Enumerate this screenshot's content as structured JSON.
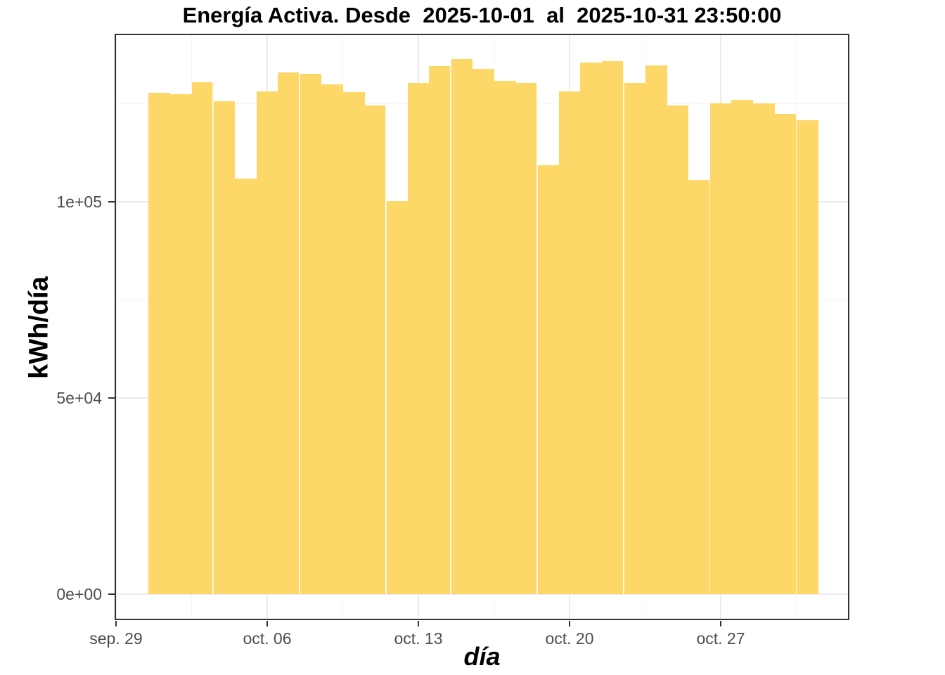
{
  "chart_data": {
    "type": "bar",
    "title": "Energía Activa. Desde  2025-10-01  al  2025-10-31 23:50:00",
    "xlabel": "día",
    "ylabel": "kWh/día",
    "x": [
      "2025-10-01",
      "2025-10-02",
      "2025-10-03",
      "2025-10-04",
      "2025-10-05",
      "2025-10-06",
      "2025-10-07",
      "2025-10-08",
      "2025-10-09",
      "2025-10-10",
      "2025-10-11",
      "2025-10-12",
      "2025-10-13",
      "2025-10-14",
      "2025-10-15",
      "2025-10-16",
      "2025-10-17",
      "2025-10-18",
      "2025-10-19",
      "2025-10-20",
      "2025-10-21",
      "2025-10-22",
      "2025-10-23",
      "2025-10-24",
      "2025-10-25",
      "2025-10-26",
      "2025-10-27",
      "2025-10-28",
      "2025-10-29",
      "2025-10-30",
      "2025-10-31"
    ],
    "values": [
      127800,
      127500,
      130500,
      125700,
      105900,
      128200,
      132900,
      132600,
      130000,
      127900,
      124600,
      100200,
      130300,
      134500,
      136300,
      133900,
      130800,
      130200,
      109300,
      128200,
      135400,
      135900,
      130300,
      134700,
      124500,
      105600,
      125100,
      125900,
      125100,
      122400,
      120700
    ],
    "x_tick_labels": [
      "sep. 29",
      "oct. 06",
      "oct. 13",
      "oct. 20",
      "oct. 27"
    ],
    "x_tick_day_offsets": [
      0,
      7,
      14,
      21,
      28
    ],
    "x_minor_day_offsets": [
      3.5,
      10.5,
      17.5,
      24.5,
      31.5
    ],
    "y_tick_labels": [
      "0e+00",
      "5e+04",
      "1e+05"
    ],
    "y_tick_values": [
      0,
      50000,
      100000
    ],
    "y_minor_values": [
      25000,
      75000,
      125000
    ],
    "ylim": [
      -6800,
      142900
    ],
    "grid": true,
    "legend_position": "none",
    "bar_color": "#FDD768",
    "seam_after_days": [
      3,
      7,
      11,
      14,
      18,
      22,
      26,
      30
    ],
    "colors": {
      "background": "#ffffff",
      "panel_border": "#333333",
      "grid_major": "#ebebeb",
      "grid_minor": "#f5f5f5",
      "tick_label": "#4d4d4d",
      "tick_mark": "#333333",
      "text": "#000000",
      "seam": "rgba(255,255,255,0.8)"
    }
  }
}
